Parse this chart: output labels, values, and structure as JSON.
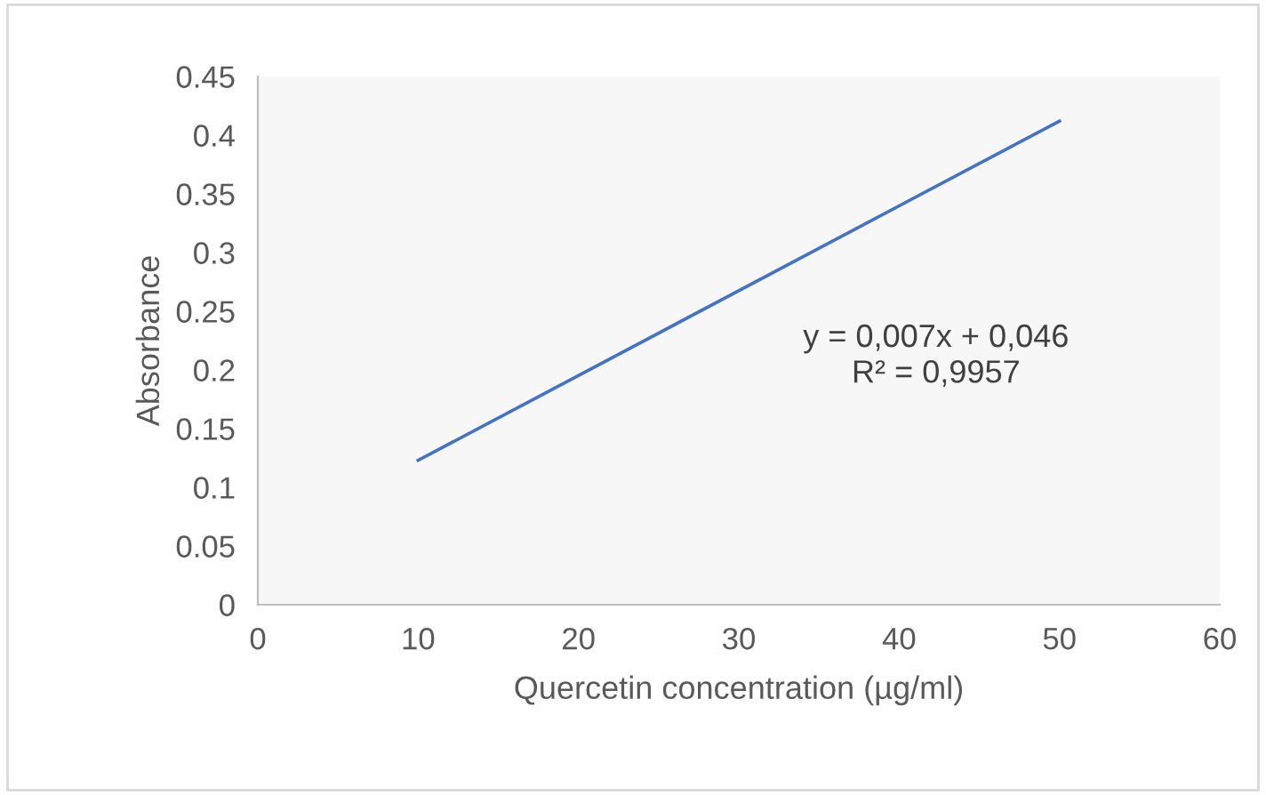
{
  "chart_data": {
    "type": "line",
    "xlabel": "Quercetin concentration (µg/ml)",
    "ylabel": "Absorbance",
    "x": [
      10,
      50
    ],
    "series": [
      {
        "color": "#4472c4",
        "values": [
          0.123,
          0.412
        ]
      }
    ],
    "xlim": [
      0,
      60
    ],
    "xticks": [
      0,
      10,
      20,
      30,
      40,
      50,
      60
    ],
    "ylim": [
      0,
      0.45
    ],
    "yticks": [
      0,
      0.05,
      0.1,
      0.15,
      0.2,
      0.25,
      0.3,
      0.35,
      0.4,
      0.45
    ],
    "annotations": [
      "y = 0,007x + 0,046",
      "R² = 0,9957"
    ],
    "grid": false,
    "legend": false,
    "marker": "none",
    "line_style": "solid"
  }
}
